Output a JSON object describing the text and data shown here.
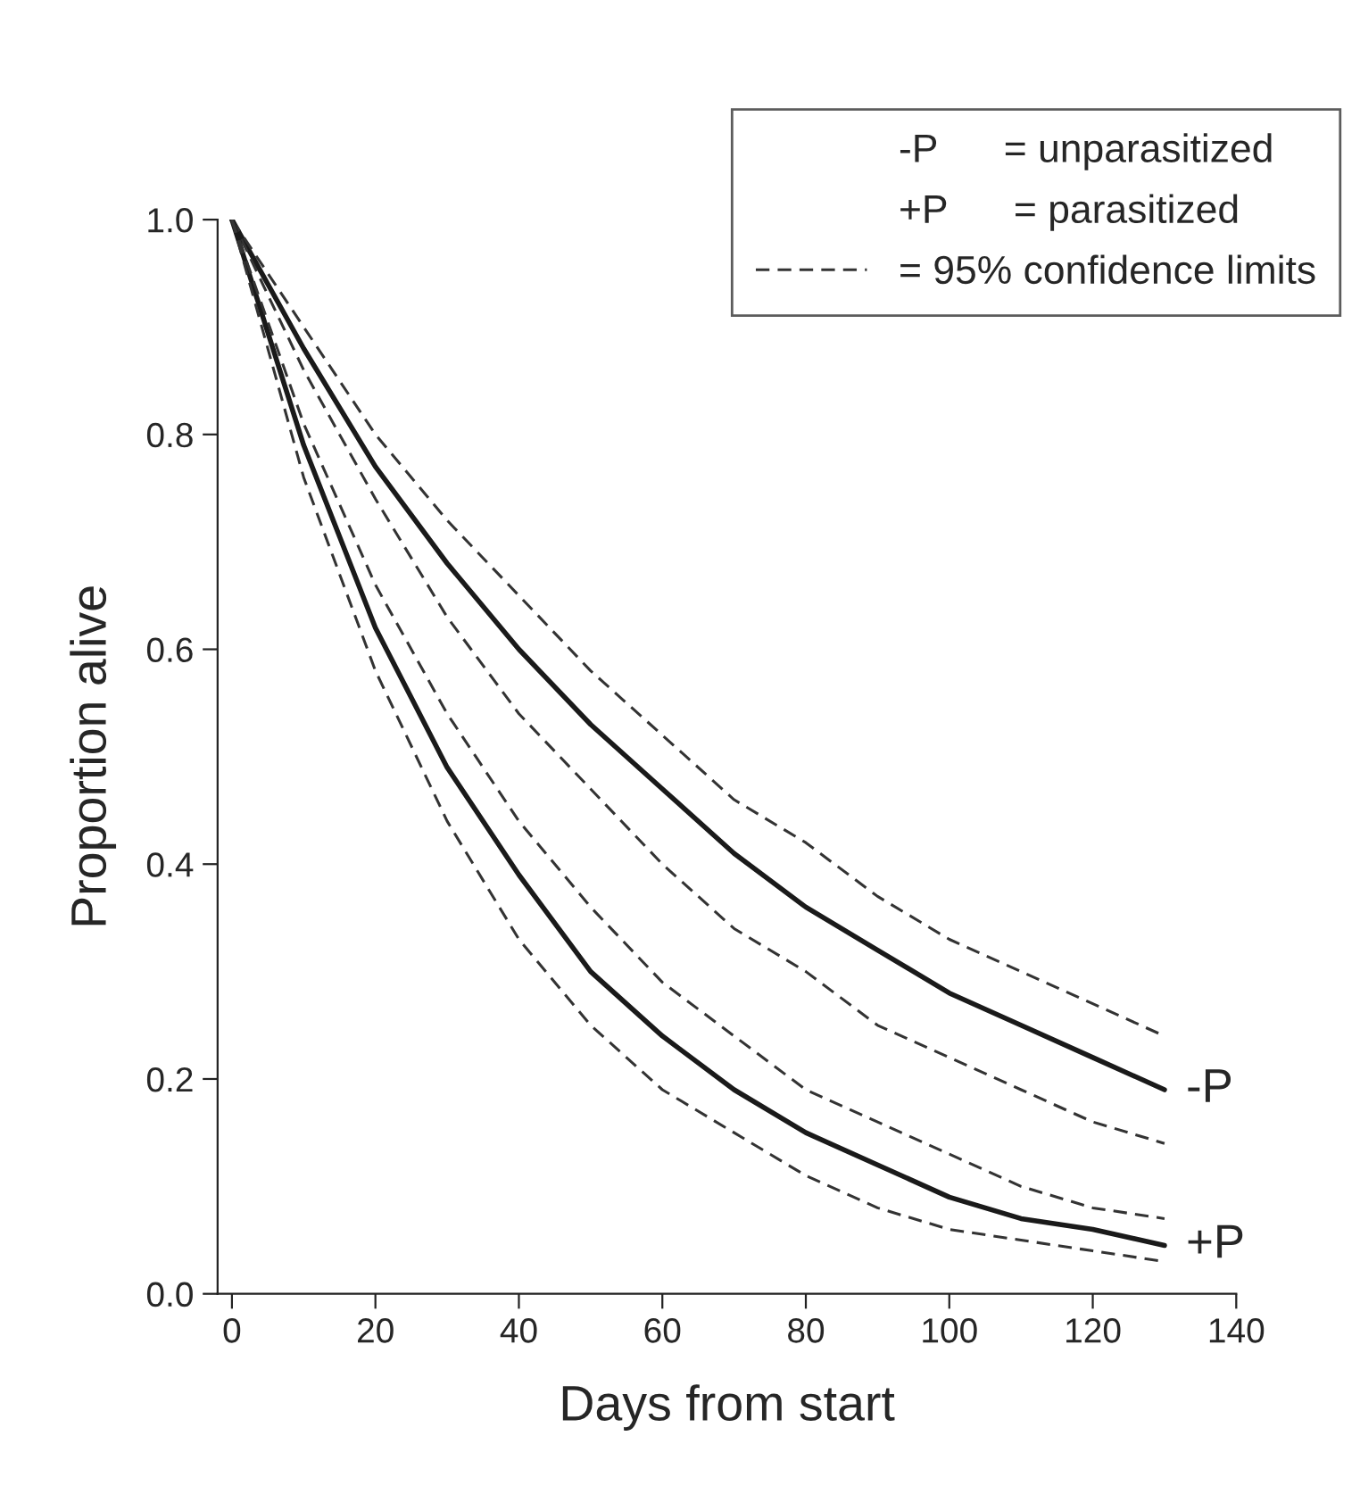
{
  "chart_data": {
    "type": "line",
    "xlabel": "Days from start",
    "ylabel": "Proportion alive",
    "x": [
      0,
      10,
      20,
      30,
      40,
      50,
      60,
      70,
      80,
      90,
      100,
      110,
      120,
      130
    ],
    "series": [
      {
        "name": "-P",
        "color": "#1a1a1a",
        "line_style": "solid",
        "values": [
          1.0,
          0.88,
          0.77,
          0.68,
          0.6,
          0.53,
          0.47,
          0.41,
          0.36,
          0.32,
          0.28,
          0.25,
          0.22,
          0.19
        ]
      },
      {
        "name": "= 95% confidence limits",
        "color": "#333333",
        "line_style": "dashed",
        "values": [
          1.0,
          0.9,
          0.8,
          0.72,
          0.65,
          0.58,
          0.52,
          0.46,
          0.42,
          0.37,
          0.33,
          0.3,
          0.27,
          0.24
        ]
      },
      {
        "color": "#333333",
        "line_style": "dashed",
        "values": [
          1.0,
          0.86,
          0.74,
          0.63,
          0.54,
          0.47,
          0.4,
          0.34,
          0.3,
          0.25,
          0.22,
          0.19,
          0.16,
          0.14
        ]
      },
      {
        "name": "+P",
        "color": "#1a1a1a",
        "line_style": "solid",
        "values": [
          1.0,
          0.79,
          0.62,
          0.49,
          0.39,
          0.3,
          0.24,
          0.19,
          0.15,
          0.12,
          0.09,
          0.07,
          0.06,
          0.045
        ]
      },
      {
        "color": "#333333",
        "line_style": "dashed",
        "values": [
          1.0,
          0.81,
          0.66,
          0.54,
          0.44,
          0.36,
          0.29,
          0.24,
          0.19,
          0.16,
          0.13,
          0.1,
          0.08,
          0.07
        ]
      },
      {
        "color": "#333333",
        "line_style": "dashed",
        "values": [
          1.0,
          0.76,
          0.58,
          0.44,
          0.33,
          0.25,
          0.19,
          0.15,
          0.11,
          0.08,
          0.06,
          0.05,
          0.04,
          0.03
        ]
      }
    ],
    "xlim": [
      -2,
      140
    ],
    "xticks": [
      0,
      20,
      40,
      60,
      80,
      100,
      120,
      140
    ],
    "ylim": [
      0,
      1.0
    ],
    "yticks": [
      {
        "value": 0,
        "label": "0.0"
      },
      {
        "value": 0.2,
        "label": "0.2"
      },
      {
        "value": 0.4,
        "label": "0.4"
      },
      {
        "value": 0.6,
        "label": "0.6"
      },
      {
        "value": 0.8,
        "label": "0.8"
      },
      {
        "value": 1.0,
        "label": "1.0"
      }
    ],
    "annotations": [
      "-P      = unparasitized",
      "+P      = parasitized"
    ],
    "legend": "top right",
    "grid": false
  }
}
